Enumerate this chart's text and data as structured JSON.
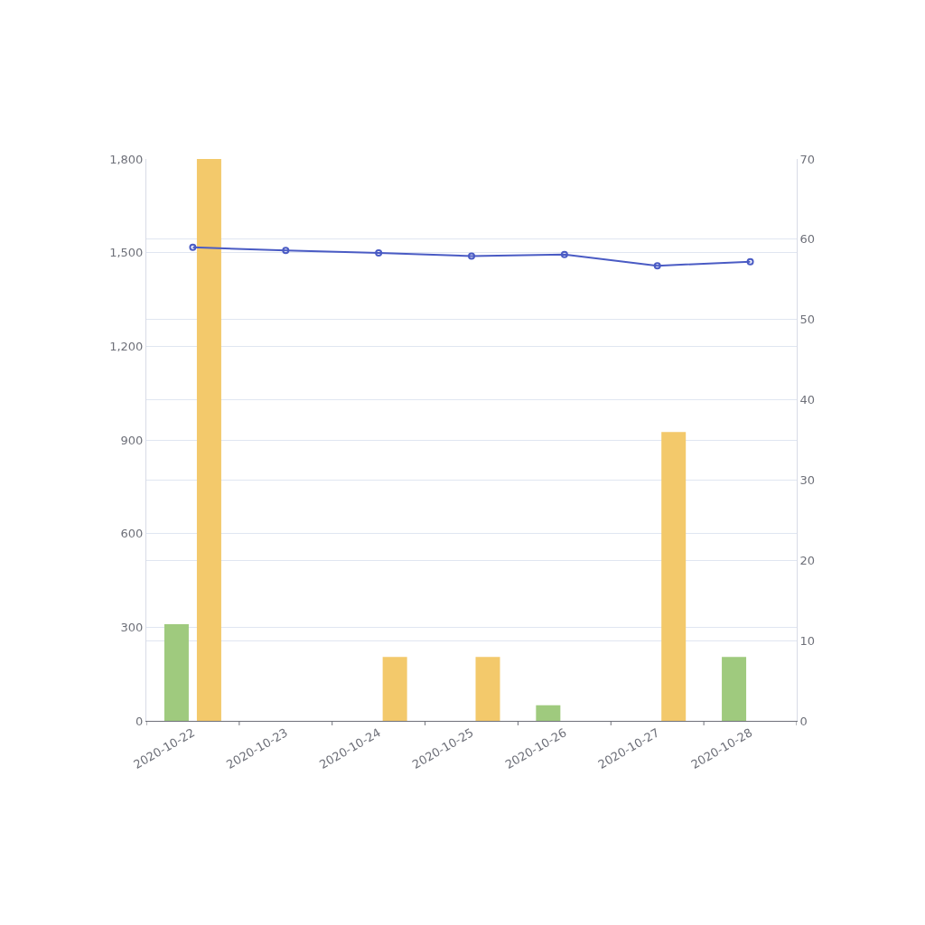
{
  "chart_data": {
    "type": "bar",
    "categories": [
      "2020-10-22",
      "2020-10-23",
      "2020-10-24",
      "2020-10-25",
      "2020-10-26",
      "2020-10-27",
      "2020-10-28"
    ],
    "series": [
      {
        "color": "#9fca7e",
        "values": [
          310,
          0,
          0,
          0,
          50,
          0,
          205
        ]
      },
      {
        "color": "#f3c96b",
        "values": [
          1800,
          0,
          205,
          205,
          0,
          925,
          0
        ]
      },
      {
        "type": "line",
        "axis": "y2",
        "color": "#4a5bc4",
        "values": [
          59.0,
          58.6,
          58.3,
          57.9,
          58.1,
          56.7,
          57.2
        ]
      }
    ],
    "ylim": [
      0,
      1800
    ],
    "yticks": [
      {
        "value": 0,
        "label": "0"
      },
      {
        "value": 300,
        "label": "300"
      },
      {
        "value": 600,
        "label": "600"
      },
      {
        "value": 900,
        "label": "900"
      },
      {
        "value": 1200,
        "label": "1,200"
      },
      {
        "value": 1500,
        "label": "1,500"
      },
      {
        "value": 1800,
        "label": "1,800"
      }
    ],
    "y2lim": [
      0,
      70
    ],
    "y2ticks": [
      0,
      10,
      20,
      30,
      40,
      50,
      60,
      70
    ],
    "grid": true,
    "legend": false,
    "marker": "circle",
    "line_style": "solid"
  }
}
